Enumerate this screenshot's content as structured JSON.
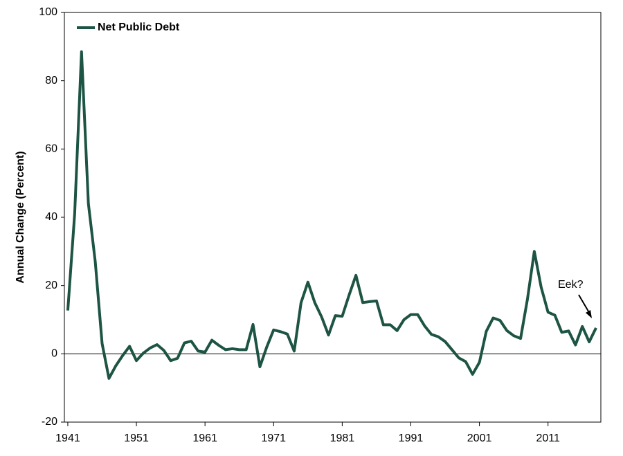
{
  "chart_data": {
    "type": "line",
    "ylabel": "Annual Change (Percent)",
    "x": [
      1941,
      1942,
      1943,
      1944,
      1945,
      1946,
      1947,
      1948,
      1949,
      1950,
      1951,
      1952,
      1953,
      1954,
      1955,
      1956,
      1957,
      1958,
      1959,
      1960,
      1961,
      1962,
      1963,
      1964,
      1965,
      1966,
      1967,
      1968,
      1969,
      1970,
      1971,
      1972,
      1973,
      1974,
      1975,
      1976,
      1977,
      1978,
      1979,
      1980,
      1981,
      1982,
      1983,
      1984,
      1985,
      1986,
      1987,
      1988,
      1989,
      1990,
      1991,
      1992,
      1993,
      1994,
      1995,
      1996,
      1997,
      1998,
      1999,
      2000,
      2001,
      2002,
      2003,
      2004,
      2005,
      2006,
      2007,
      2008,
      2009,
      2010,
      2011,
      2012,
      2013,
      2014,
      2015,
      2016,
      2017,
      2018
    ],
    "series": [
      {
        "name": "Net Public Debt",
        "color": "#1d5444",
        "values": [
          12.7,
          41,
          88.5,
          44,
          27,
          3,
          -7.2,
          -3.5,
          -0.5,
          2.2,
          -2,
          0.2,
          1.7,
          2.7,
          1,
          -2,
          -1.3,
          3.2,
          3.7,
          0.8,
          0.5,
          4,
          2.5,
          1.2,
          1.5,
          1.2,
          1.2,
          8.6,
          -3.8,
          2,
          7,
          6.5,
          5.8,
          0.8,
          15,
          21,
          15,
          10.8,
          5.5,
          11.2,
          11,
          17.2,
          23,
          15,
          15.3,
          15.5,
          8.5,
          8.5,
          6.8,
          10,
          11.5,
          11.5,
          8.2,
          5.7,
          5,
          3.6,
          1.2,
          -1.2,
          -2.3,
          -6,
          -2.5,
          6.6,
          10.5,
          9.8,
          6.8,
          5.3,
          4.5,
          16,
          30,
          19.5,
          12.2,
          11.3,
          6.3,
          6.7,
          2.6,
          8,
          3.5,
          7.6
        ]
      }
    ],
    "xlim": [
      1940.5,
      2018.7
    ],
    "xticks": [
      1941,
      1951,
      1961,
      1971,
      1981,
      1991,
      2001,
      2011
    ],
    "ylim": [
      -20,
      100
    ],
    "yticks": [
      -20,
      0,
      20,
      40,
      60,
      80,
      100
    ],
    "legend": "upper left",
    "annotations": [
      {
        "text": "Eek?"
      }
    ]
  }
}
